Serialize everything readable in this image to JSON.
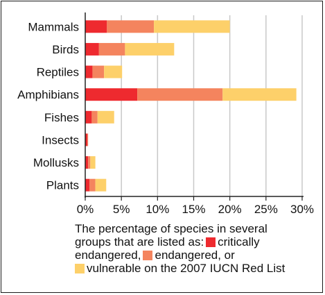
{
  "chart_data": {
    "type": "bar",
    "orientation": "horizontal",
    "stacked": true,
    "categories": [
      "Mammals",
      "Birds",
      "Reptiles",
      "Amphibians",
      "Fishes",
      "Insects",
      "Mollusks",
      "Plants"
    ],
    "series": [
      {
        "name": "critically endangered",
        "color": "#ee2a2f",
        "values": [
          3.0,
          1.9,
          1.0,
          7.2,
          0.9,
          0.3,
          0.4,
          0.6
        ]
      },
      {
        "name": "endangered",
        "color": "#f4845e",
        "values": [
          6.5,
          3.6,
          1.6,
          11.8,
          0.8,
          0.1,
          0.3,
          0.8
        ]
      },
      {
        "name": "vulnerable",
        "color": "#fdd06a",
        "values": [
          10.5,
          6.8,
          2.5,
          10.2,
          2.3,
          0.0,
          0.7,
          1.5
        ]
      }
    ],
    "xlim": [
      0,
      30
    ],
    "xticks": [
      "0%",
      "5%",
      "10%",
      "15%",
      "20%",
      "25%",
      "30%"
    ],
    "grid": true
  },
  "caption": {
    "line1": "The percentage of species in several",
    "line2_prefix": "groups that are listed as:",
    "critically_label": "critically",
    "line3_prefix": "endangered,",
    "endangered_label": "endangered, or",
    "vulnerable_label": "vulnerable on the 2007 IUCN Red List"
  },
  "colors": {
    "critically": "#ee2a2f",
    "endangered": "#f4845e",
    "vulnerable": "#fdd06a",
    "grid": "#c8c8c8",
    "axis": "#222222"
  }
}
